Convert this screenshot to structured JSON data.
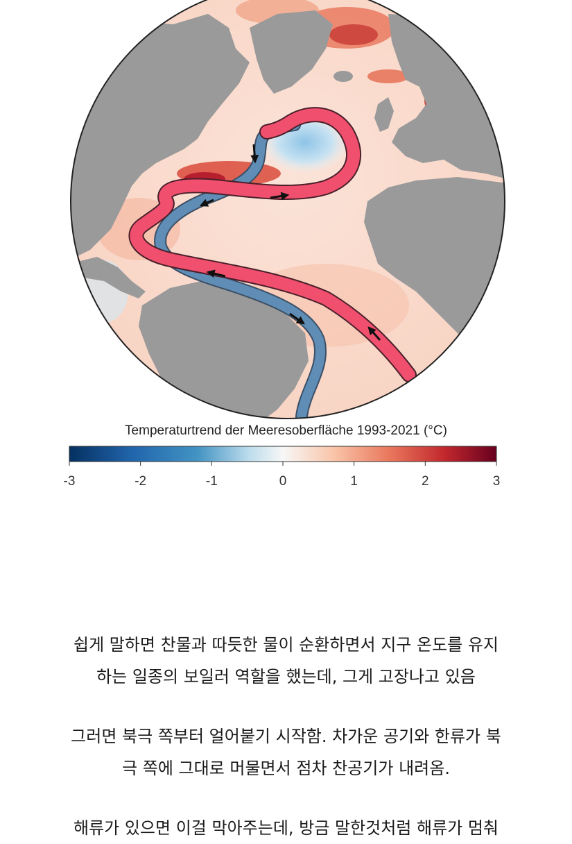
{
  "colorbar": {
    "title": "Temperaturtrend der Meeresoberfläche 1993-2021 (°C)",
    "ticks": [
      "-3",
      "-2",
      "-1",
      "0",
      "1",
      "2",
      "3"
    ],
    "range": [
      -3,
      3
    ],
    "colors": [
      "#053061",
      "#2166ac",
      "#4393c3",
      "#92c5de",
      "#f7f7f7",
      "#f4a582",
      "#d6604d",
      "#b2182b",
      "#67001f"
    ]
  },
  "map": {
    "land_color": "#9a9a9a",
    "warm_current_color": "#f0506e",
    "cold_current_color": "#5a86ad"
  },
  "paragraphs": [
    "쉽게 말하면 찬물과 따듯한 물이 순환하면서 지구 온도를 유지\n하는 일종의 보일러 역할을 했는데, 그게 고장나고 있음",
    "그러면 북극 쪽부터 얼어붙기 시작함. 차가운 공기와 한류가 북\n극 쪽에 그대로 머물면서 점차 찬공기가 내려옴.",
    "해류가 있으면 이걸 막아주는데, 방금 말한것처럼 해류가 멈춰"
  ]
}
